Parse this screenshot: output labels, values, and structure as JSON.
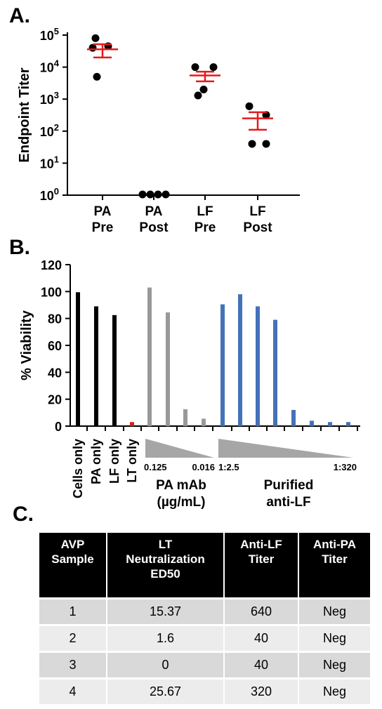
{
  "panels": {
    "a": "A.",
    "b": "B.",
    "c": "C."
  },
  "chart_data": [
    {
      "type": "scatter",
      "ylabel": "Endpoint Titer",
      "yscale": "log",
      "ylim": [
        1,
        100000
      ],
      "yticks": [
        {
          "base": "10",
          "exp": "5",
          "value": 100000
        },
        {
          "base": "10",
          "exp": "4",
          "value": 10000
        },
        {
          "base": "10",
          "exp": "3",
          "value": 1000
        },
        {
          "base": "10",
          "exp": "2",
          "value": 100
        },
        {
          "base": "10",
          "exp": "1",
          "value": 10
        },
        {
          "base": "10",
          "exp": "0",
          "value": 1
        }
      ],
      "categories": [
        {
          "line1": "PA",
          "line2": "Pre"
        },
        {
          "line1": "PA",
          "line2": "Post"
        },
        {
          "line1": "LF",
          "line2": "Pre"
        },
        {
          "line1": "LF",
          "line2": "Post"
        }
      ],
      "points": [
        [
          80000,
          45000,
          40000,
          5000
        ],
        [
          1,
          1,
          1,
          1
        ],
        [
          10000,
          10000,
          2000,
          1300
        ],
        [
          600,
          320,
          40,
          40
        ]
      ],
      "mean": [
        36000,
        null,
        5500,
        250
      ],
      "sem_low": [
        20000,
        null,
        3600,
        110
      ],
      "sem_high": [
        52000,
        null,
        7200,
        390
      ],
      "error_color": "#e31a1c"
    },
    {
      "type": "bar",
      "ylabel": "% Viability",
      "ylim": [
        0,
        120
      ],
      "yticks": [
        "0",
        "20",
        "40",
        "60",
        "80",
        "100",
        "120"
      ],
      "controls": [
        {
          "label": "Cells only",
          "value": 99.5,
          "color": "#000000"
        },
        {
          "label": "PA only",
          "value": 89,
          "color": "#000000"
        },
        {
          "label": "LF only",
          "value": 82.5,
          "color": "#000000"
        },
        {
          "label": "LT only",
          "value": 3,
          "color": "#e31a1c"
        }
      ],
      "groups": [
        {
          "name_line1": "PA mAb",
          "name_line2": "(µg/mL)",
          "start": "0.125",
          "end": "0.016",
          "color": "#999999",
          "values": [
            103,
            84.5,
            12.5,
            5.5
          ]
        },
        {
          "name_line1": "Purified",
          "name_line2": "anti-LF",
          "start": "1:2.5",
          "end": "1:320",
          "color": "#4472b8",
          "values": [
            90.5,
            98,
            89,
            79,
            12,
            4,
            3,
            3
          ]
        }
      ]
    }
  ],
  "table": {
    "headers": [
      "AVP\nSample",
      "LT\nNeutralization\nED50",
      "Anti-LF\nTiter",
      "Anti-PA\nTiter"
    ],
    "rows": [
      [
        "1",
        "15.37",
        "640",
        "Neg"
      ],
      [
        "2",
        "1.6",
        "40",
        "Neg"
      ],
      [
        "3",
        "0",
        "40",
        "Neg"
      ],
      [
        "4",
        "25.67",
        "320",
        "Neg"
      ]
    ]
  }
}
